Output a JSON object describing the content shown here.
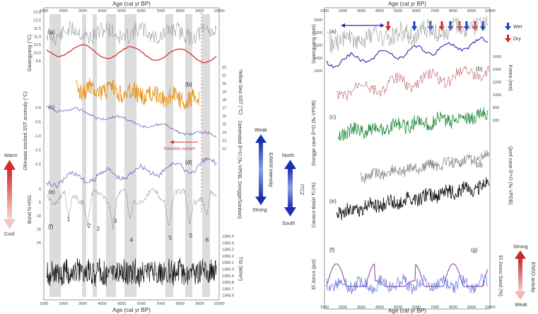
{
  "left_panel": {
    "x_axis_title": "Age (cal yr BP)",
    "x_ticks": [
      "1000",
      "2000",
      "3000",
      "4000",
      "5000",
      "6000",
      "7000",
      "8000",
      "9000",
      "10000"
    ],
    "panel_labels": [
      "(a)",
      "(b)",
      "(c)",
      "(d)",
      "(e)",
      "(f)"
    ],
    "y_left_titles": [
      "Gwangyang (°C)",
      "Okinawa stacked SST anomaly (°C)",
      "Bond N-HSG",
      "TSI (W/m²)"
    ],
    "y_right_titles": [
      "Yellow Sea SST (°C)",
      "Detrended δ¹⁸O (‰ VPDB, Dongge/Sanbao)",
      "TSI (W/m²)"
    ],
    "y_left_ticks_a": [
      "12.5",
      "12.0",
      "11.5",
      "11.0",
      "10.5",
      "10.0",
      "9.5"
    ],
    "y_right_ticks_b": [
      "22",
      "21",
      "20",
      "19",
      "18",
      "17",
      "16",
      "15",
      "14",
      "13",
      "12"
    ],
    "y_left_ticks_c": [
      "0.0",
      "-0.5",
      "-1.0",
      "-1.5",
      "-2.0"
    ],
    "y_left_ticks_bond": [
      "0",
      "5",
      "10",
      "15",
      "20"
    ],
    "y_right_ticks_tsi": [
      "1366.5",
      "1366.4",
      "1366.3",
      "1366.2",
      "1366.1",
      "1366.0",
      "1365.9",
      "1365.8",
      "1365.7",
      "1365.6"
    ],
    "bond_events": [
      "1",
      "2",
      "3",
      "4",
      "5",
      "6"
    ],
    "kuroshio_label": "Kuroshio current",
    "eaw_label": "EAWM intensity",
    "eaw_top": "Weak",
    "eaw_bottom": "Strong",
    "warm_label": "Warm",
    "cool_label": "Cool"
  },
  "right_panel": {
    "x_axis_title": "Age (cal yr BP)",
    "x_ticks": [
      "1000",
      "2000",
      "3000",
      "4000",
      "5000",
      "6000",
      "7000",
      "8000",
      "9000",
      "10000"
    ],
    "panel_labels": [
      "(a)",
      "(b)",
      "(c)",
      "(d)",
      "(e)",
      "(f)",
      "(g)"
    ],
    "legend_wet": "Wet",
    "legend_dry": "Dry",
    "y_left_titles": [
      "Gwangyang (mm)",
      "Dongge cave δ¹⁸O (‰ VPDB)",
      "Cariaco Basin Ti (%)",
      "El Junco (pct)"
    ],
    "y_right_titles": [
      "Korea (mm)",
      "Qunf cave δ¹⁸O (‰ VPDB)",
      "El Junco Sand (%)"
    ],
    "y_left_ticks_a": [
      "1600",
      "1550",
      "1500",
      "1450",
      "1400"
    ],
    "y_right_ticks_b": [
      "1600",
      "1400",
      "1200",
      "1000",
      "800",
      "600"
    ],
    "itcz_label": "ITCZ",
    "itcz_top": "North",
    "itcz_bottom": "South",
    "enso_label": "ENSO activity",
    "enso_top": "Strong",
    "enso_bottom": "Weak"
  },
  "colors": {
    "red": "#d73030",
    "orange": "#e8961e",
    "blue": "#1f2fa8",
    "green": "#1f8a3b",
    "gray": "#8a8a8a",
    "black": "#111111",
    "purple": "#7a2a8a",
    "shade": "#d9d9d9",
    "arrow_blue": "#2040c0",
    "arrow_red": "#d02828"
  }
}
